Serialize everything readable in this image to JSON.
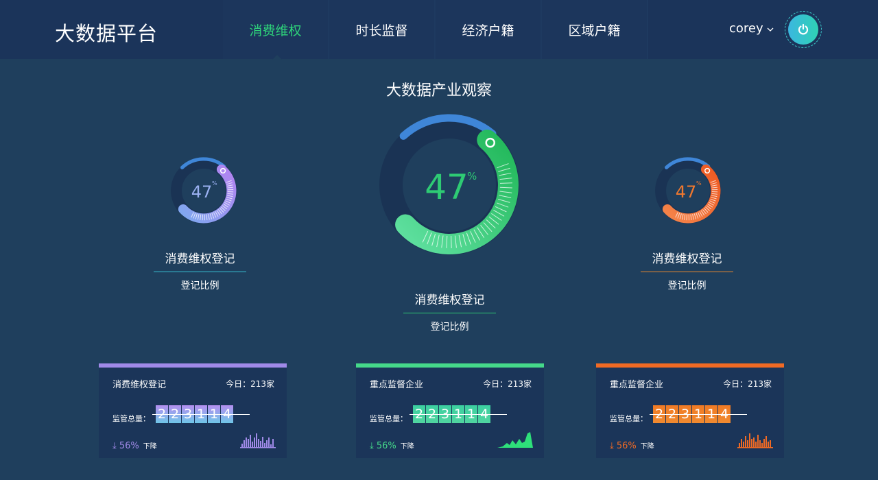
{
  "header": {
    "logo": "大数据平台",
    "nav": [
      {
        "label": "消费维权",
        "active": true
      },
      {
        "label": "时长监督"
      },
      {
        "label": "经济户籍"
      },
      {
        "label": "区域户籍"
      }
    ],
    "user": "corey",
    "user_chevron": "chevron-down-icon",
    "power_icon": "power-icon"
  },
  "main": {
    "title": "大数据产业观察",
    "gauges": [
      {
        "value": "47",
        "unit": "%",
        "label": "消费维权登记",
        "sub": "登记比例",
        "color": "#a47af0",
        "value_percent": 47
      },
      {
        "value": "47",
        "unit": "%",
        "label": "消费维权登记",
        "sub": "登记比例",
        "color": "#2ecb74",
        "value_percent": 47
      },
      {
        "value": "47",
        "unit": "%",
        "label": "消费维权登记",
        "sub": "登记比例",
        "color": "#f06a2e",
        "value_percent": 47
      }
    ],
    "cards": [
      {
        "title": "消费维权登记",
        "today": "今日：213家",
        "total_label": "监管总量：",
        "digits": [
          "2",
          "2",
          "3",
          "1",
          "1",
          "4"
        ],
        "trend": "56%",
        "trend_label": "下降",
        "trend_icon": "arrow-down-icon",
        "color": "#a08ae8"
      },
      {
        "title": "重点监督企业",
        "today": "今日：213家",
        "total_label": "监管总量：",
        "digits": [
          "2",
          "2",
          "3",
          "1",
          "1",
          "4"
        ],
        "trend": "56%",
        "trend_label": "下降",
        "trend_icon": "arrow-down-icon",
        "color": "#45d98a"
      },
      {
        "title": "重点监督企业",
        "today": "今日：213家",
        "total_label": "监管总量：",
        "digits": [
          "2",
          "2",
          "3",
          "1",
          "1",
          "4"
        ],
        "trend": "56%",
        "trend_label": "下降",
        "trend_icon": "arrow-down-icon",
        "color": "#f06a24"
      }
    ]
  }
}
